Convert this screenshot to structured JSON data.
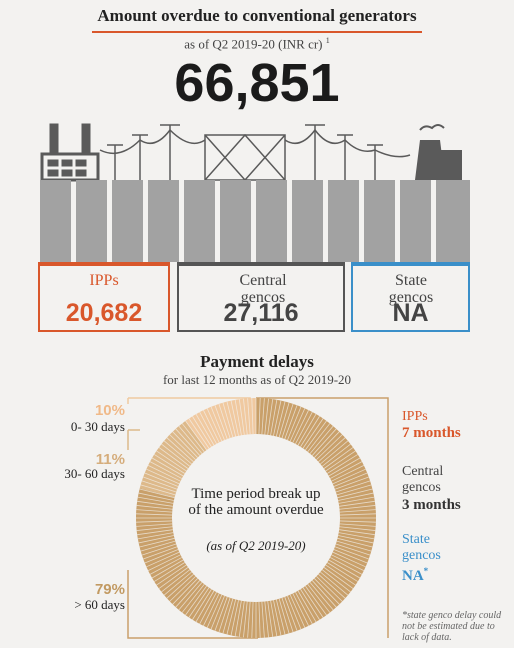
{
  "header": {
    "title": "Amount overdue to conventional generators",
    "subtitle": "as of Q2 2019-20 (INR cr)",
    "footnote_mark": "1",
    "total": "66,851"
  },
  "boxes": [
    {
      "label": "IPPs",
      "value": "20,682"
    },
    {
      "label": "Central gencos",
      "value": "27,116"
    },
    {
      "label": "State gencos",
      "value": "NA"
    }
  ],
  "chart_data": {
    "type": "pie",
    "title": "Payment delays",
    "subtitle": "for last 12 months as of Q2 2019-20",
    "center_text": "Time period break up of the amount overdue",
    "center_note": "(as of Q2 2019-20)",
    "categories": [
      "0- 30 days",
      "30- 60 days",
      "> 60 days"
    ],
    "values": [
      10,
      11,
      79
    ],
    "value_labels": [
      "10%",
      "11%",
      "79%"
    ],
    "colors": [
      "#f0c9a0",
      "#ddb98a",
      "#c9a06a"
    ]
  },
  "delays": [
    {
      "label": "IPPs",
      "value": "7 months"
    },
    {
      "label": "Central gencos",
      "value": "3 months"
    },
    {
      "label": "State gencos",
      "value": "NA",
      "mark": "*"
    }
  ],
  "footnote": "*state genco delay could not be estimated due to lack of data."
}
